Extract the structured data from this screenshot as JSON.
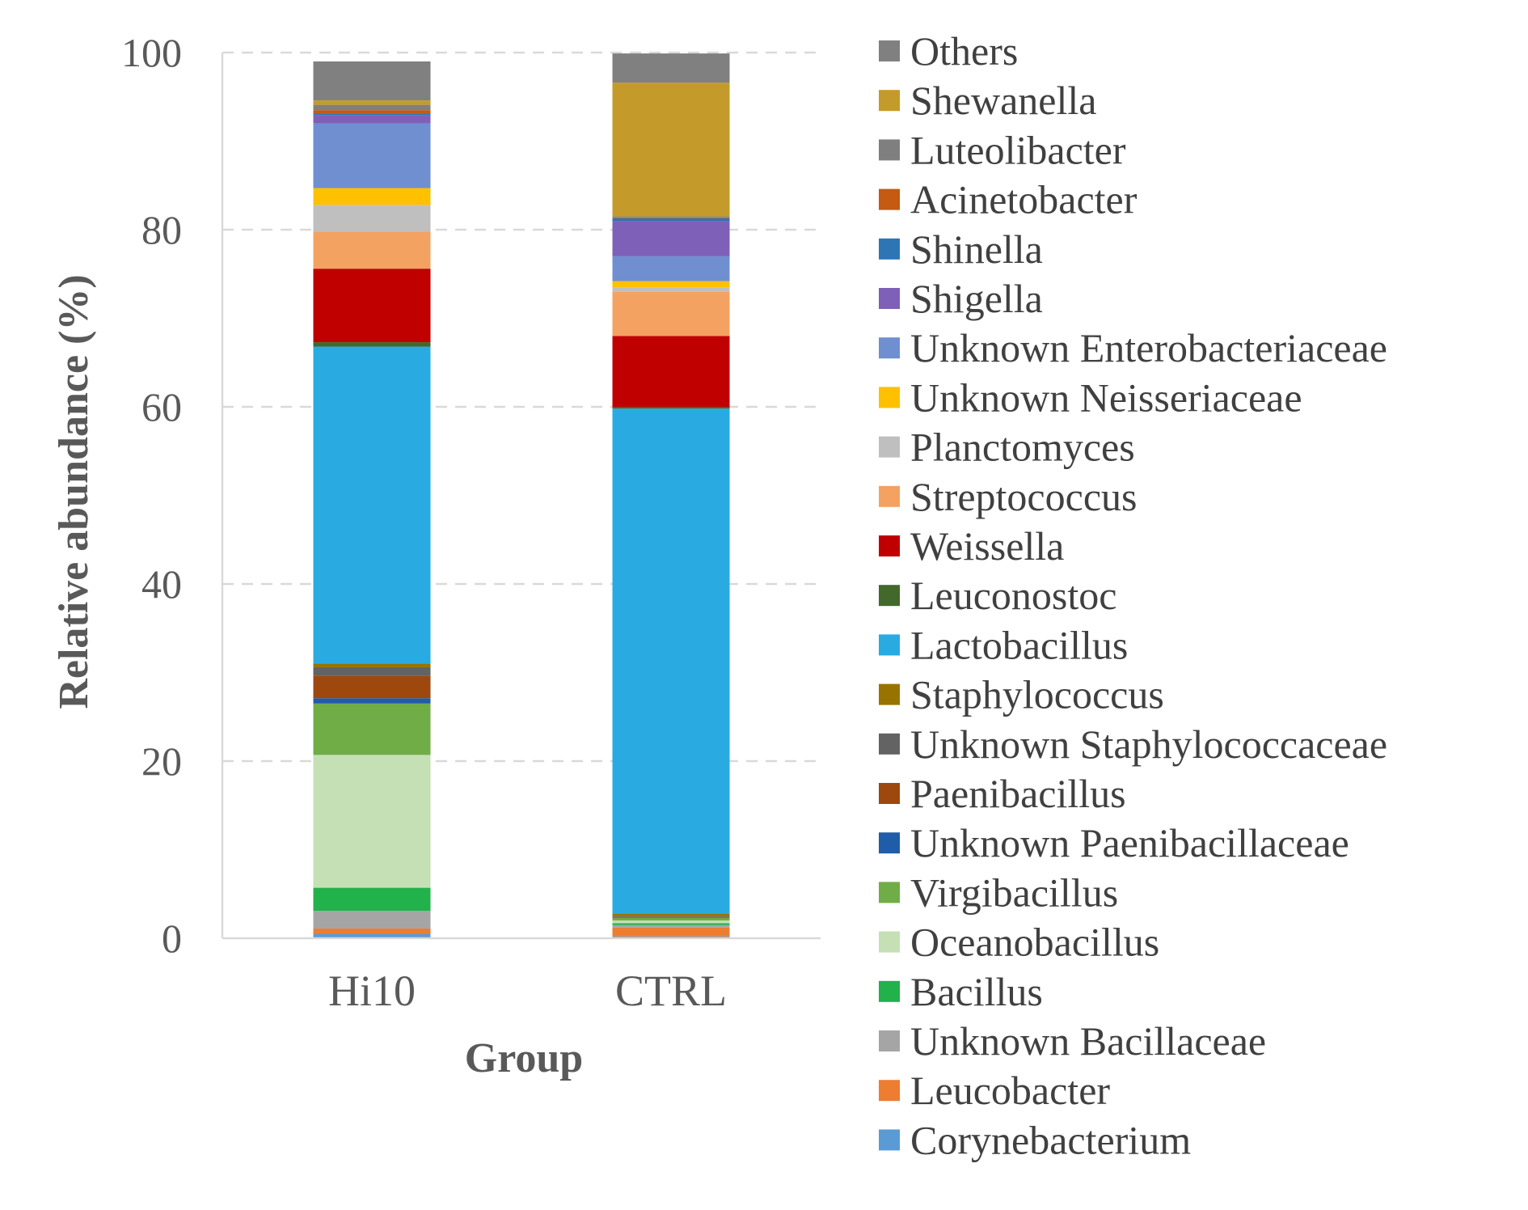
{
  "chart_data": {
    "type": "bar",
    "stacked": true,
    "xlabel": "Group",
    "ylabel": "Relative abundance (%)",
    "ylim": [
      0,
      100
    ],
    "yticks": [
      "0",
      "20",
      "40",
      "60",
      "80",
      "100"
    ],
    "grid": "dashed horizontal",
    "legend_position": "right",
    "categories": [
      "Hi10",
      "CTRL"
    ],
    "series": [
      {
        "name": "Corynebacterium",
        "color": "#5b9bd5",
        "values": [
          0.5,
          0.2
        ]
      },
      {
        "name": "Leucobacter",
        "color": "#ed7d31",
        "values": [
          0.6,
          1.0
        ]
      },
      {
        "name": "Unknown Bacillaceae",
        "color": "#a5a5a5",
        "values": [
          2.0,
          0.3
        ]
      },
      {
        "name": "Bacillus",
        "color": "#21b24b",
        "values": [
          2.6,
          0.2
        ]
      },
      {
        "name": "Oceanobacillus",
        "color": "#c5e0b4",
        "values": [
          15.0,
          0.3
        ]
      },
      {
        "name": "Virgibacillus",
        "color": "#70ad47",
        "values": [
          5.8,
          0.3
        ]
      },
      {
        "name": "Unknown Paenibacillaceae",
        "color": "#1f5da8",
        "values": [
          0.6,
          0.0
        ]
      },
      {
        "name": "Paenibacillus",
        "color": "#9e480e",
        "values": [
          2.5,
          0.1
        ]
      },
      {
        "name": "Unknown Staphylococcaceae",
        "color": "#636363",
        "values": [
          1.0,
          0.1
        ]
      },
      {
        "name": "Staphylococcus",
        "color": "#997300",
        "values": [
          0.4,
          0.3
        ]
      },
      {
        "name": "Lactobacillus",
        "color": "#29abe2",
        "values": [
          35.8,
          57.0
        ]
      },
      {
        "name": "Leuconostoc",
        "color": "#43682b",
        "values": [
          0.5,
          0.2
        ]
      },
      {
        "name": "Weissella",
        "color": "#c00000",
        "values": [
          8.3,
          8.0
        ]
      },
      {
        "name": "Streptococcus",
        "color": "#f4a261",
        "values": [
          4.2,
          5.0
        ]
      },
      {
        "name": "Planctomyces",
        "color": "#bfbfbf",
        "values": [
          3.0,
          0.5
        ]
      },
      {
        "name": "Unknown Neisseriaceae",
        "color": "#ffc000",
        "values": [
          1.9,
          0.7
        ]
      },
      {
        "name": "Unknown Enterobacteriaceae",
        "color": "#6f8fd0",
        "values": [
          7.3,
          2.8
        ]
      },
      {
        "name": "Shigella",
        "color": "#7e60b9",
        "values": [
          0.9,
          4.0
        ]
      },
      {
        "name": "Shinella",
        "color": "#2e75b6",
        "values": [
          0.2,
          0.3
        ]
      },
      {
        "name": "Acinetobacter",
        "color": "#c55a11",
        "values": [
          0.4,
          0.1
        ]
      },
      {
        "name": "Luteolibacter",
        "color": "#7f7f7f",
        "values": [
          0.6,
          0.1
        ]
      },
      {
        "name": "Shewanella",
        "color": "#c49a2a",
        "values": [
          0.5,
          15.1
        ]
      },
      {
        "name": "Others",
        "color": "#808080",
        "values": [
          4.4,
          3.3
        ]
      }
    ]
  }
}
